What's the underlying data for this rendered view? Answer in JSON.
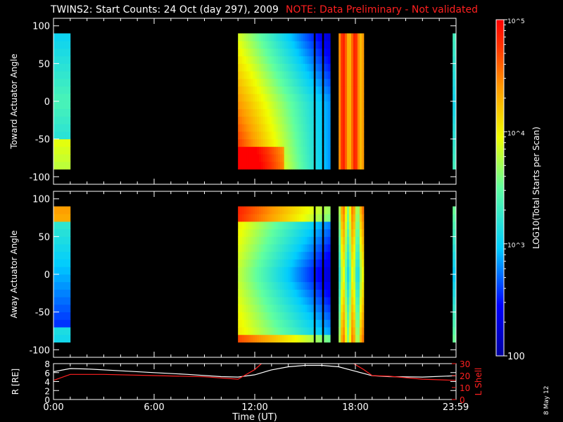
{
  "title": "TWINS2: Start Counts: 24 Oct (day 297), 2009",
  "note": "NOTE: Data Preliminary - Not validated",
  "stamp": "8 May 12",
  "colorbar": {
    "label": "LOG10(Total Starts per Scan)",
    "min": 100,
    "max": 100000,
    "scale": "log",
    "tick_labels": [
      "100",
      "10^3",
      "10^4",
      "10^5"
    ],
    "tick_values": [
      100,
      1000,
      10000,
      100000
    ]
  },
  "chart_data": [
    {
      "type": "heatmap",
      "title": "",
      "ylabel": "Toward Actuator Angle",
      "xlabel": "",
      "xlim": [
        0,
        24
      ],
      "ylim": [
        -110,
        110
      ],
      "y_ticks": [
        -100,
        -50,
        0,
        50,
        100
      ],
      "data_intervals_hours": [
        [
          0,
          1.0
        ],
        [
          11.0,
          16.5
        ],
        [
          17.0,
          18.5
        ],
        [
          23.8,
          24
        ]
      ],
      "gaps_hours": [
        [
          15.55,
          15.65
        ],
        [
          16.05,
          16.15
        ]
      ]
    },
    {
      "type": "heatmap",
      "title": "",
      "ylabel": "Away Actuator Angle",
      "xlabel": "",
      "xlim": [
        0,
        24
      ],
      "ylim": [
        -110,
        110
      ],
      "y_ticks": [
        -100,
        -50,
        0,
        50,
        100
      ],
      "data_intervals_hours": [
        [
          0,
          1.0
        ],
        [
          11.0,
          16.5
        ],
        [
          17.0,
          18.5
        ],
        [
          23.8,
          24
        ]
      ],
      "gaps_hours": [
        [
          15.55,
          15.65
        ],
        [
          16.05,
          16.15
        ]
      ]
    },
    {
      "type": "line",
      "title": "",
      "ylabel": "R [RE]",
      "y2label": "L Shell",
      "xlabel": "Time (UT)",
      "xlim": [
        0,
        24
      ],
      "ylim": [
        0,
        8
      ],
      "y2lim": [
        0,
        30
      ],
      "y_ticks": [
        0,
        2,
        4,
        6,
        8
      ],
      "y2_ticks": [
        0,
        10,
        20,
        30
      ],
      "x_ticks": [
        0,
        6,
        12,
        18,
        23.983
      ],
      "x_tick_labels": [
        "0:00",
        "6:00",
        "12:00",
        "18:00",
        "23:59"
      ],
      "series": [
        {
          "name": "",
          "axis": "left",
          "color": "#ffffff",
          "x": [
            0,
            1,
            2,
            4,
            6,
            8,
            10,
            11,
            12,
            13,
            14,
            15,
            16,
            17,
            18,
            19,
            20,
            22,
            24
          ],
          "y": [
            6.2,
            6.9,
            6.8,
            6.4,
            6.0,
            5.6,
            5.1,
            5.0,
            5.5,
            6.6,
            7.3,
            7.6,
            7.6,
            7.3,
            6.3,
            5.3,
            5.1,
            5.0,
            5.3
          ]
        },
        {
          "name": "",
          "axis": "right",
          "color": "#ff2020",
          "x": [
            0,
            1,
            3,
            6,
            9,
            11,
            12,
            12.4
          ],
          "y": [
            16,
            21,
            21,
            20,
            19,
            17,
            25,
            32
          ]
        },
        {
          "name": "",
          "axis": "right",
          "color": "#ff2020",
          "x": [
            17.9,
            18.5,
            19,
            20,
            22,
            24
          ],
          "y": [
            32,
            25,
            20,
            19.5,
            17,
            16
          ]
        }
      ]
    }
  ]
}
